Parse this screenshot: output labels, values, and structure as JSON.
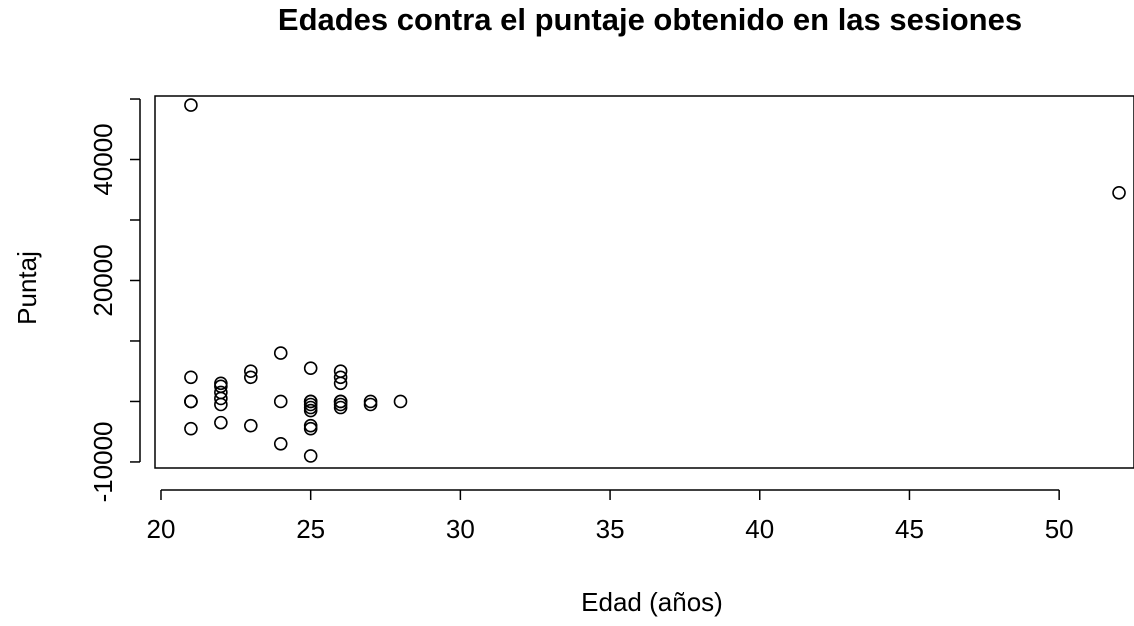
{
  "chart_data": {
    "type": "scatter",
    "title": "Edades contra el puntaje obtenido en las sesiones",
    "xlabel": "Edad (años)",
    "ylabel": "Puntaj",
    "xlim": [
      19.8,
      52.5
    ],
    "ylim": [
      -11000,
      50500
    ],
    "xticks": [
      20,
      25,
      30,
      35,
      40,
      45,
      50
    ],
    "yticks": [
      -10000,
      20000,
      40000
    ],
    "ytick_marks": [
      -10000,
      0,
      10000,
      20000,
      30000,
      40000,
      50000
    ],
    "grid": false,
    "legend": "none",
    "marker": "open-circle",
    "series": [
      {
        "x": [
          21,
          21,
          21,
          21,
          21,
          21,
          22,
          22,
          22,
          22,
          22,
          22,
          23,
          23,
          23,
          24,
          24,
          24,
          25,
          25,
          25,
          25,
          25,
          25,
          25,
          25,
          25,
          26,
          26,
          26,
          26,
          26,
          26,
          26,
          27,
          27,
          28,
          52
        ],
        "y": [
          49000,
          4000,
          0,
          0,
          -4500,
          0,
          3000,
          2500,
          1500,
          500,
          -500,
          -3500,
          5000,
          4000,
          -4000,
          8000,
          0,
          -7000,
          5500,
          0,
          -500,
          -1000,
          -1500,
          -4000,
          -4500,
          -9000,
          0,
          5000,
          4000,
          3000,
          0,
          -500,
          -1000,
          0,
          0,
          -500,
          0,
          34500
        ]
      }
    ]
  }
}
